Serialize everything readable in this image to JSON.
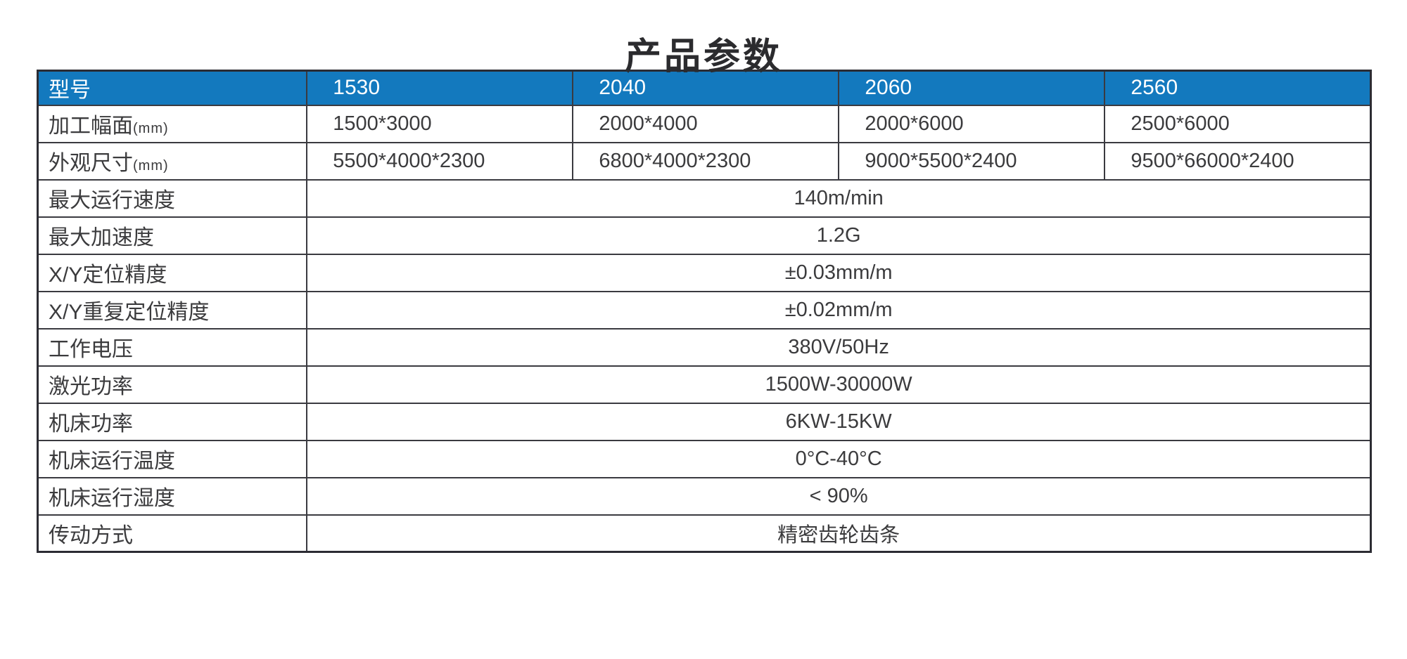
{
  "page": {
    "title": "产品参数"
  },
  "table": {
    "header": {
      "label": "型号",
      "models": [
        "1530",
        "2040",
        "2060",
        "2560"
      ]
    },
    "size_rows": [
      {
        "label": "加工幅面",
        "suffix": "(mm)",
        "values": [
          "1500*3000",
          "2000*4000",
          "2000*6000",
          "2500*6000"
        ]
      },
      {
        "label": "外观尺寸",
        "suffix": "(mm)",
        "values": [
          "5500*4000*2300",
          "6800*4000*2300",
          "9000*5500*2400",
          "9500*66000*2400"
        ]
      }
    ],
    "spec_rows": [
      {
        "label": "最大运行速度",
        "value": "140m/min"
      },
      {
        "label": "最大加速度",
        "value": "1.2G"
      },
      {
        "label": "X/Y定位精度",
        "value": "±0.03mm/m"
      },
      {
        "label": "X/Y重复定位精度",
        "value": "±0.02mm/m"
      },
      {
        "label": "工作电压",
        "value": "380V/50Hz"
      },
      {
        "label": "激光功率",
        "value": "1500W-30000W"
      },
      {
        "label": "机床功率",
        "value": "6KW-15KW"
      },
      {
        "label": "机床运行温度",
        "value": "0°C-40°C"
      },
      {
        "label": "机床运行湿度",
        "value": "< 90%"
      },
      {
        "label": "传动方式",
        "value": "精密齿轮齿条"
      }
    ],
    "colors": {
      "header_bg": "#1379BE",
      "header_text": "#ffffff",
      "border": "#3a3a40",
      "body_text": "#3b3b3d"
    }
  }
}
